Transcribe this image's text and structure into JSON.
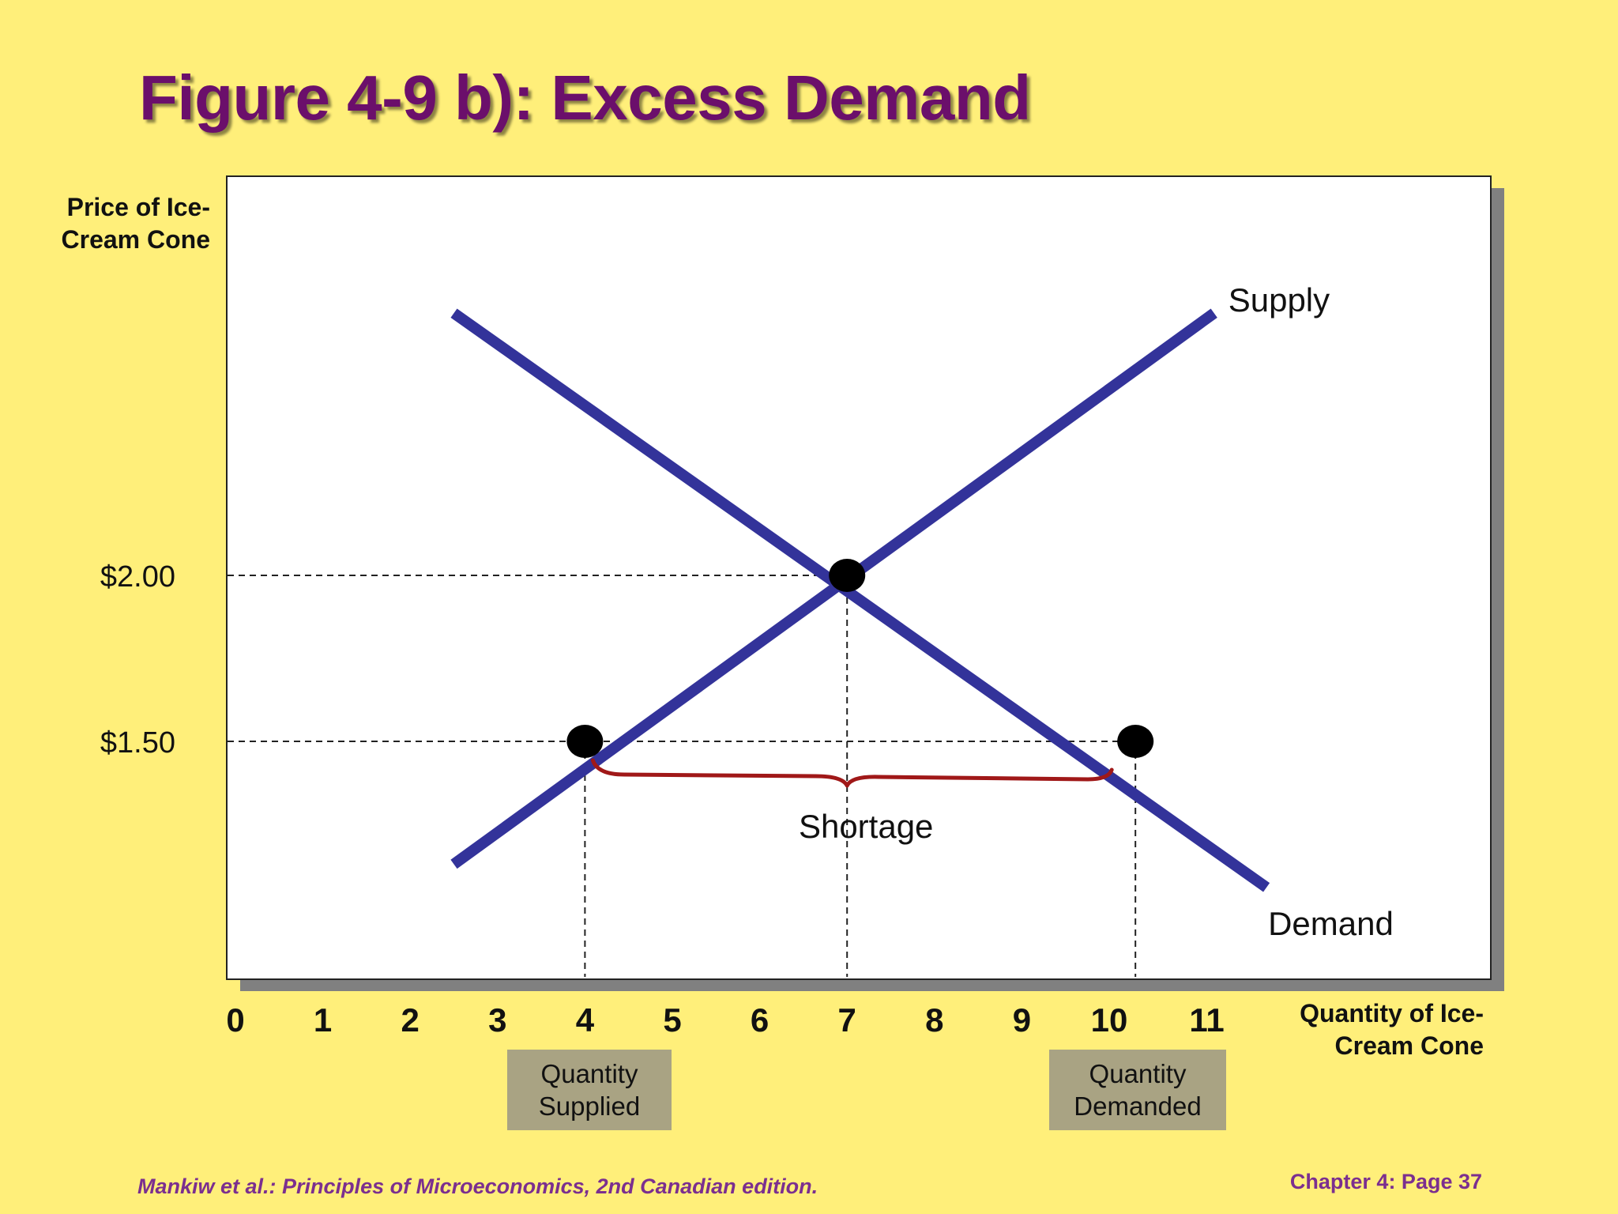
{
  "title": "Figure 4-9 b): Excess Demand",
  "chart_data": {
    "type": "line",
    "xlabel": "Quantity of Ice-Cream Cone",
    "ylabel": "Price of Ice-Cream Cone",
    "x_ticks": [
      "0",
      "1",
      "2",
      "3",
      "4",
      "5",
      "6",
      "7",
      "8",
      "9",
      "10",
      "11"
    ],
    "y_ticks": [
      {
        "value": 2.0,
        "label": "$2.00"
      },
      {
        "value": 1.5,
        "label": "$1.50"
      }
    ],
    "xlim": [
      0,
      11
    ],
    "series": [
      {
        "name": "Supply",
        "color": "#33339A",
        "points": [
          [
            2.5,
            1.13
          ],
          [
            11.2,
            2.79
          ]
        ]
      },
      {
        "name": "Demand",
        "color": "#33339A",
        "points": [
          [
            2.5,
            2.79
          ],
          [
            11.8,
            1.06
          ]
        ]
      }
    ],
    "points": [
      {
        "x": 7,
        "y": 2.0
      },
      {
        "x": 4,
        "y": 1.5
      },
      {
        "x": 10.3,
        "y": 1.5
      }
    ],
    "annotations": {
      "shortage": "Shortage",
      "brace_color": "#A01818"
    },
    "quantity_supplied": "Quantity Supplied",
    "quantity_demanded": "Quantity Demanded"
  },
  "footer": {
    "source": "Mankiw et al.: Principles of Microeconomics, 2nd Canadian edition.",
    "page": "Chapter 4: Page 37"
  }
}
